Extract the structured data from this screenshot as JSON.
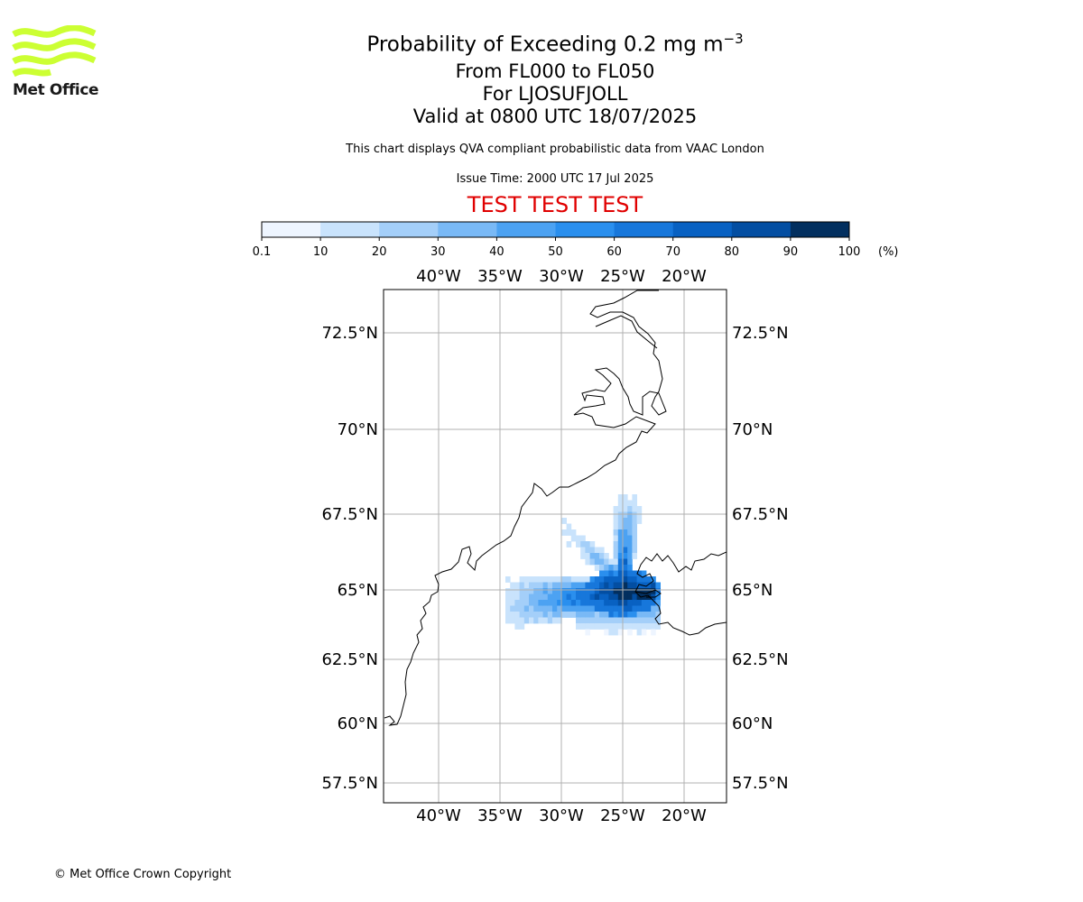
{
  "logo": {
    "text": "Met Office",
    "color": "#ccff33"
  },
  "title": {
    "main": "Probability of Exceeding 0.2 mg m",
    "main_superscript": "−3",
    "line2": "From FL000 to FL050",
    "line3": "For LJOSUFJOLL",
    "line4": "Valid at 0800 UTC 18/07/2025"
  },
  "description": "This chart displays QVA compliant probabilistic data from VAAC London",
  "issue_time": "Issue Time: 2000 UTC 17 Jul 2025",
  "test_banner": {
    "text": "TEST TEST TEST",
    "color": "#e00000"
  },
  "colorbar": {
    "ticks": [
      "0.1",
      "10",
      "20",
      "30",
      "40",
      "50",
      "60",
      "70",
      "80",
      "90",
      "100"
    ],
    "unit": "(%)",
    "colors": [
      "#eef5ff",
      "#c9e3fc",
      "#a4cff9",
      "#79b9f6",
      "#4ca2f2",
      "#2a8fee",
      "#1777db",
      "#0861c2",
      "#034ea2",
      "#022f5f"
    ]
  },
  "map": {
    "lon_labels": [
      "40°W",
      "35°W",
      "30°W",
      "25°W",
      "20°W"
    ],
    "lat_labels": [
      "72.5°N",
      "70°N",
      "67.5°N",
      "65°N",
      "62.5°N",
      "60°N",
      "57.5°N"
    ]
  },
  "copyright": "© Met Office Crown Copyright"
}
